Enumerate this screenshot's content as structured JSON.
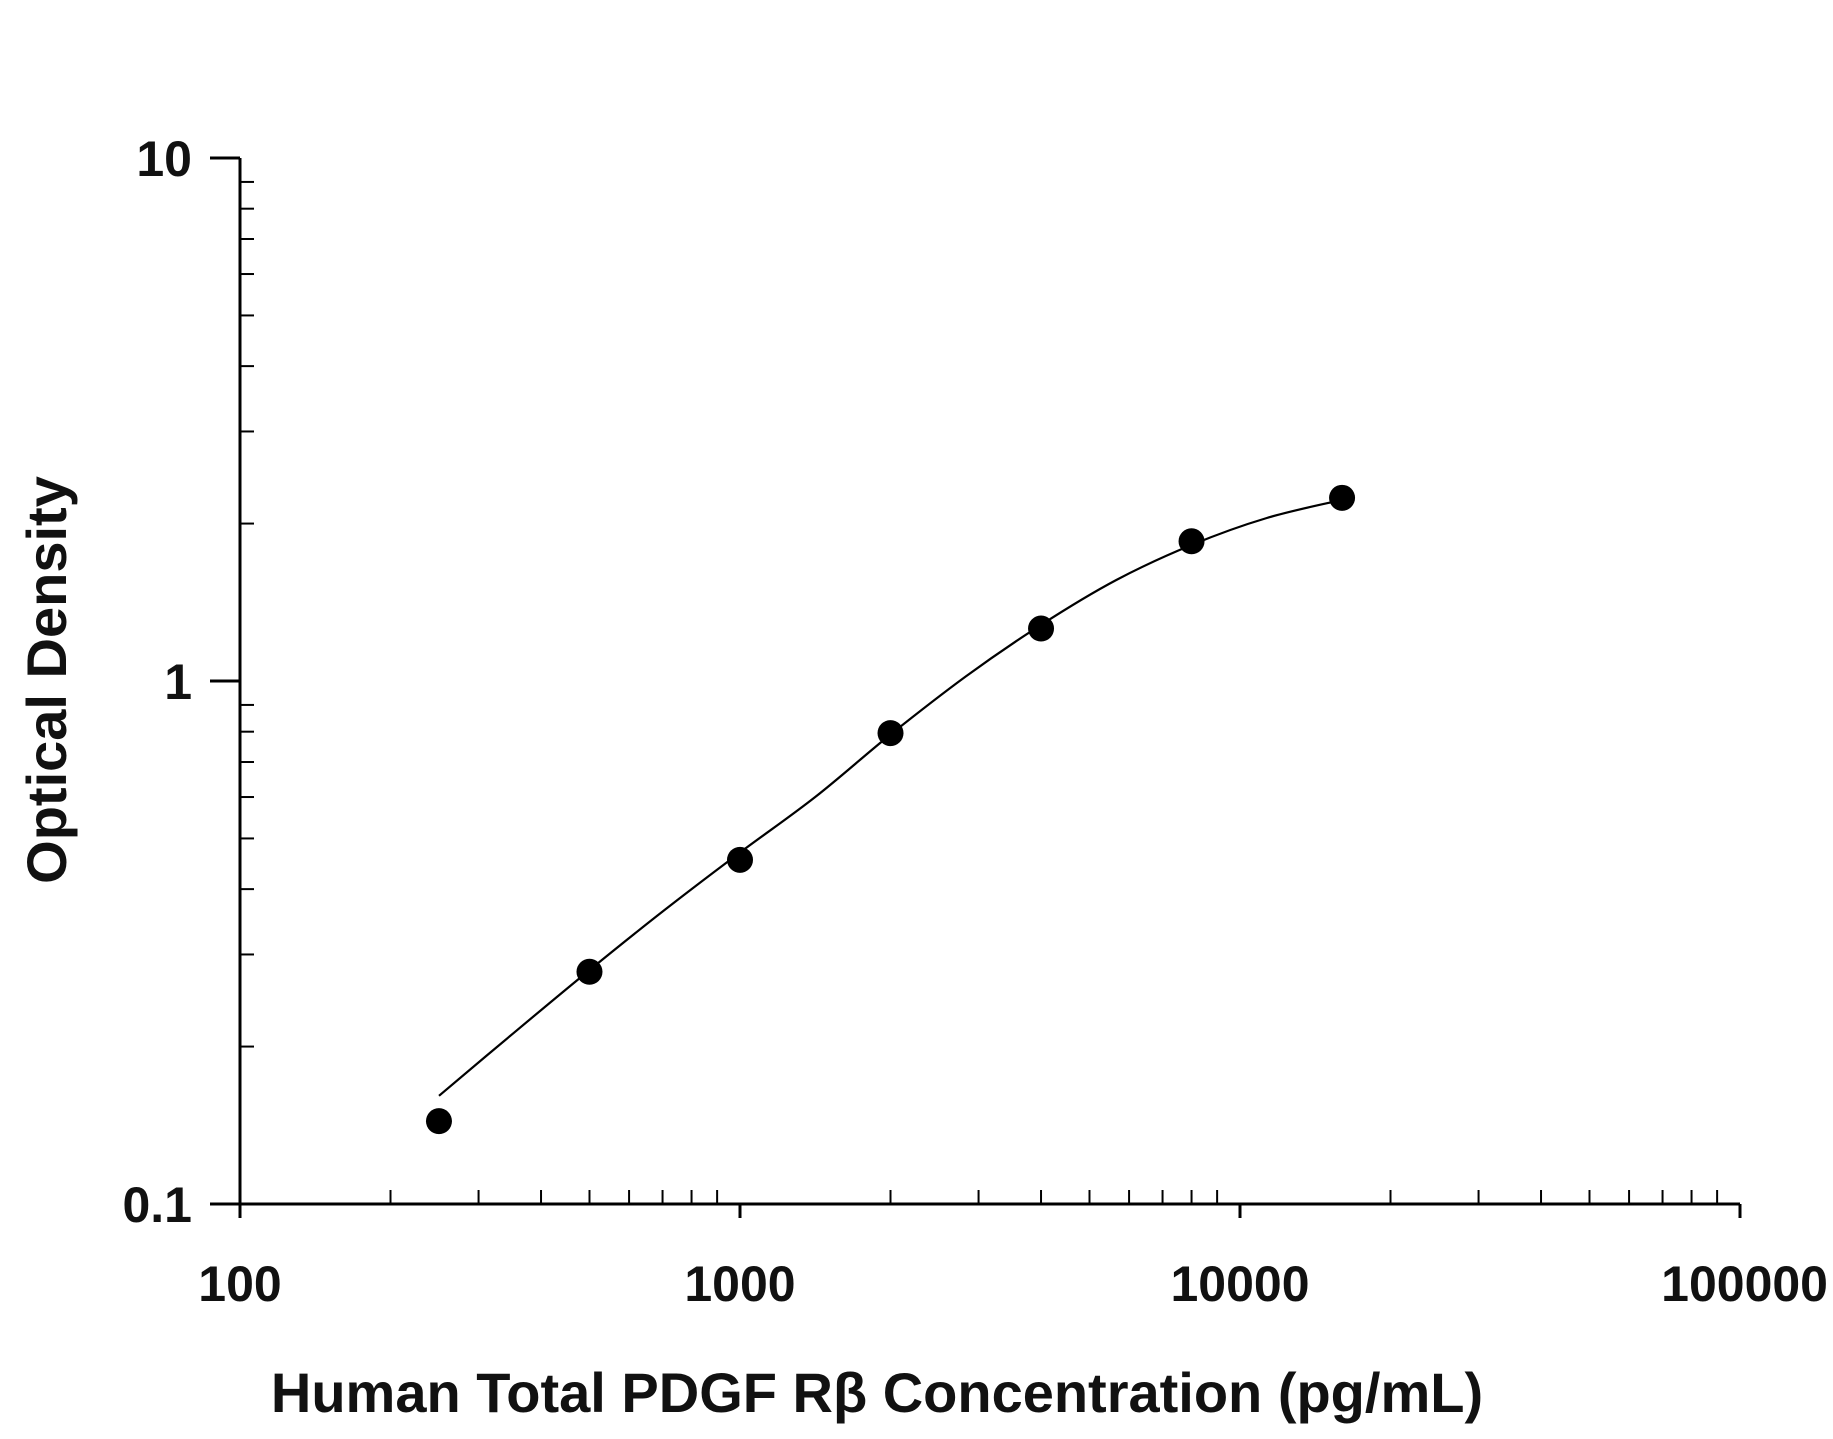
{
  "chart_data": {
    "type": "scatter",
    "title": "",
    "xlabel": "Human Total PDGF Rβ Concentration (pg/mL)",
    "ylabel": "Optical Density",
    "x_scale": "log",
    "y_scale": "log",
    "xlim": [
      100,
      100000
    ],
    "ylim": [
      0.1,
      10
    ],
    "x_tick_labels": [
      "100",
      "1000",
      "10000",
      "100000"
    ],
    "y_tick_labels": [
      "0.1",
      "1",
      "10"
    ],
    "grid": false,
    "legend": "none",
    "colors": {
      "points": "#000000",
      "curve": "#000000",
      "axis": "#000000"
    },
    "series": [
      {
        "points": [
          {
            "x": 250,
            "y": 0.144
          },
          {
            "x": 500,
            "y": 0.278
          },
          {
            "x": 1000,
            "y": 0.455
          },
          {
            "x": 2000,
            "y": 0.795
          },
          {
            "x": 4000,
            "y": 1.26
          },
          {
            "x": 8000,
            "y": 1.85
          },
          {
            "x": 16000,
            "y": 2.24
          }
        ],
        "fit_curve": [
          {
            "x": 250,
            "y": 0.161
          },
          {
            "x": 354,
            "y": 0.213
          },
          {
            "x": 500,
            "y": 0.28
          },
          {
            "x": 707,
            "y": 0.365
          },
          {
            "x": 1000,
            "y": 0.47
          },
          {
            "x": 1414,
            "y": 0.6
          },
          {
            "x": 2000,
            "y": 0.79
          },
          {
            "x": 2828,
            "y": 1.02
          },
          {
            "x": 4000,
            "y": 1.28
          },
          {
            "x": 5657,
            "y": 1.56
          },
          {
            "x": 8000,
            "y": 1.82
          },
          {
            "x": 11314,
            "y": 2.05
          },
          {
            "x": 16000,
            "y": 2.22
          }
        ]
      }
    ]
  }
}
